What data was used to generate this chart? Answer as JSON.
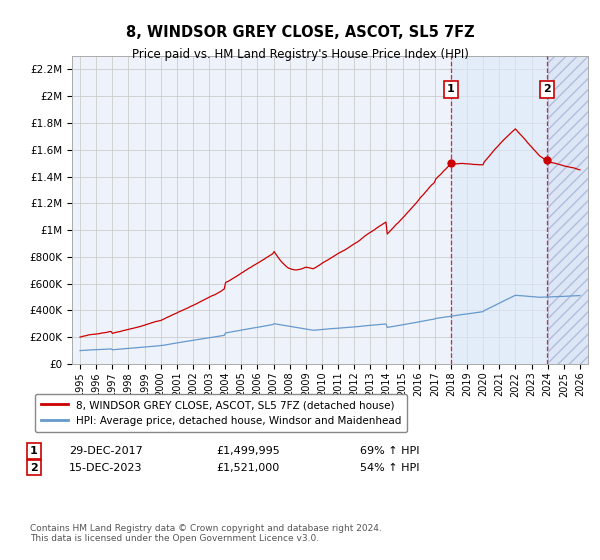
{
  "title": "8, WINDSOR GREY CLOSE, ASCOT, SL5 7FZ",
  "subtitle": "Price paid vs. HM Land Registry's House Price Index (HPI)",
  "ylim": [
    0,
    2300000
  ],
  "yticks": [
    0,
    200000,
    400000,
    600000,
    800000,
    1000000,
    1200000,
    1400000,
    1600000,
    1800000,
    2000000,
    2200000
  ],
  "ytick_labels": [
    "£0",
    "£200K",
    "£400K",
    "£600K",
    "£800K",
    "£1M",
    "£1.2M",
    "£1.4M",
    "£1.6M",
    "£1.8M",
    "£2M",
    "£2.2M"
  ],
  "red_line_color": "#cc0000",
  "blue_line_color": "#6699cc",
  "marker1_year": 2017.99,
  "marker1_value": 1499995,
  "marker1_label": "1",
  "marker1_date": "29-DEC-2017",
  "marker1_price": "£1,499,995",
  "marker1_pct": "69% ↑ HPI",
  "marker2_year": 2023.96,
  "marker2_value": 1521000,
  "marker2_label": "2",
  "marker2_date": "15-DEC-2023",
  "marker2_price": "£1,521,000",
  "marker2_pct": "54% ↑ HPI",
  "legend_red": "8, WINDSOR GREY CLOSE, ASCOT, SL5 7FZ (detached house)",
  "legend_blue": "HPI: Average price, detached house, Windsor and Maidenhead",
  "footnote": "Contains HM Land Registry data © Crown copyright and database right 2024.\nThis data is licensed under the Open Government Licence v3.0.",
  "bg_color": "#eef2fb",
  "hatch_bg_color": "#dde6f5",
  "shade_between_color": "#dde8f8",
  "grid_color": "#cccccc",
  "future_start_year": 2024.0,
  "t_start": 1995.0,
  "t_end": 2026.0,
  "x_min": 1994.5,
  "x_max": 2026.5
}
